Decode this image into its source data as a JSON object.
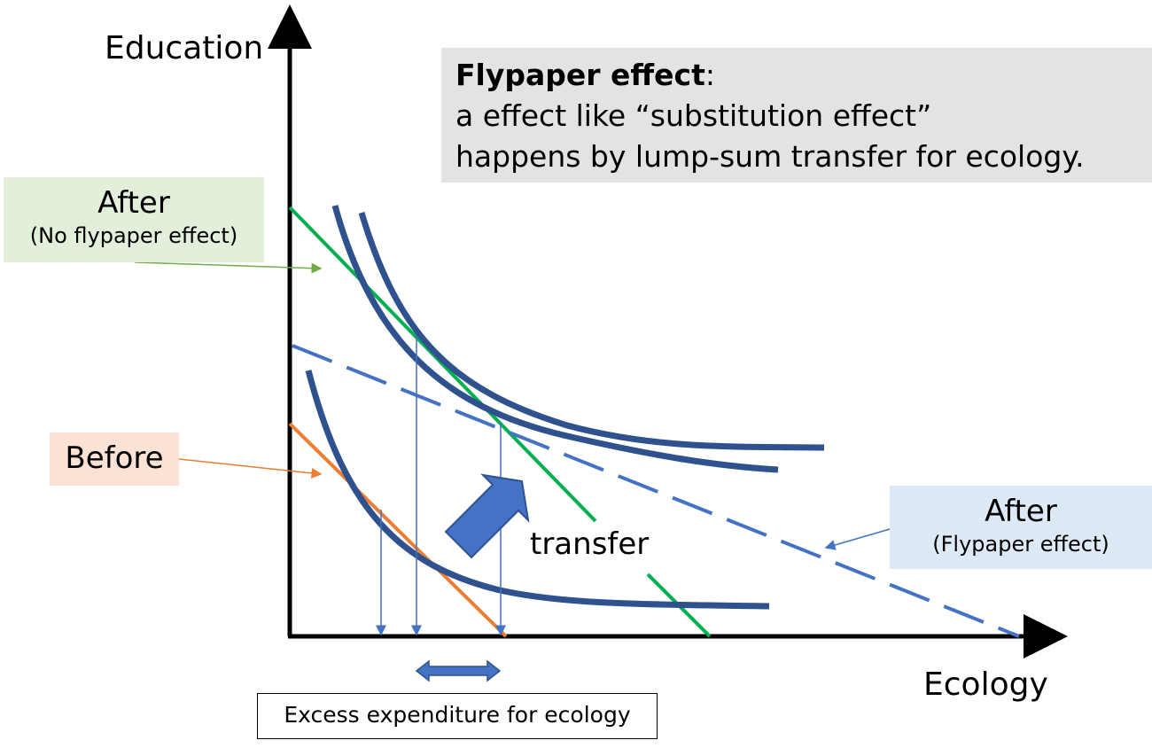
{
  "axes": {
    "y_label": "Education",
    "x_label": "Ecology"
  },
  "note": {
    "title": "Flypaper effect",
    "title_suffix": ":",
    "line1": "a effect like “substitution effect”",
    "line2": "happens by lump-sum transfer for ecology."
  },
  "labels": {
    "after_no_flypaper": {
      "main": "After",
      "sub": "(No flypaper effect)"
    },
    "before": "Before",
    "after_flypaper": {
      "main": "After",
      "sub": "(Flypaper effect)"
    },
    "transfer": "transfer",
    "excess": "Excess expenditure for ecology"
  },
  "colors": {
    "curve": "#2f528f",
    "green_line": "#00b050",
    "orange_line": "#ed7d31",
    "blue_dash": "#4472c4",
    "callout_green": "#70ad47"
  }
}
